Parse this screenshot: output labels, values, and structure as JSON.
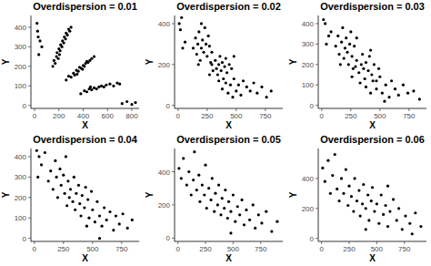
{
  "chart_data": [
    {
      "type": "scatter",
      "title": "Overdispersion = 0.01",
      "x_label": "X",
      "y_label": "Y",
      "color": "#000000",
      "marker": "circle",
      "xlim": [
        -30,
        860
      ],
      "ylim": [
        -15,
        460
      ],
      "xticks": [
        0,
        200,
        400,
        600,
        800
      ],
      "yticks": [
        0,
        100,
        200,
        300,
        400
      ],
      "x": [
        20,
        25,
        30,
        45,
        60,
        35,
        150,
        160,
        170,
        180,
        185,
        195,
        200,
        210,
        215,
        225,
        230,
        240,
        245,
        255,
        260,
        270,
        280,
        290,
        300,
        205,
        260,
        280,
        300,
        320,
        330,
        345,
        360,
        370,
        385,
        400,
        410,
        420,
        440,
        455,
        470,
        490,
        350,
        395,
        430,
        380,
        410,
        430,
        450,
        470,
        490,
        510,
        530,
        550,
        570,
        590,
        620,
        650,
        680,
        700,
        460,
        720,
        760,
        800,
        830
      ],
      "values": [
        420,
        380,
        350,
        330,
        300,
        260,
        200,
        230,
        215,
        250,
        270,
        240,
        290,
        280,
        310,
        300,
        330,
        320,
        350,
        340,
        370,
        360,
        390,
        380,
        400,
        260,
        130,
        150,
        145,
        165,
        155,
        180,
        175,
        195,
        190,
        205,
        200,
        215,
        220,
        230,
        240,
        250,
        160,
        185,
        225,
        60,
        75,
        70,
        85,
        80,
        90,
        85,
        95,
        100,
        95,
        105,
        110,
        100,
        115,
        110,
        95,
        10,
        20,
        5,
        15
      ]
    },
    {
      "type": "scatter",
      "title": "Overdispersion = 0.02",
      "x_label": "X",
      "y_label": "Y",
      "color": "#000000",
      "marker": "circle",
      "xlim": [
        -30,
        900
      ],
      "ylim": [
        -15,
        440
      ],
      "xticks": [
        0,
        250,
        500,
        750
      ],
      "yticks": [
        0,
        200,
        400
      ],
      "x": [
        10,
        30,
        20,
        40,
        60,
        130,
        150,
        160,
        170,
        180,
        190,
        200,
        210,
        220,
        230,
        240,
        250,
        260,
        270,
        280,
        200,
        175,
        290,
        270,
        290,
        300,
        320,
        330,
        340,
        350,
        360,
        370,
        380,
        390,
        400,
        410,
        420,
        440,
        460,
        480,
        350,
        380,
        410,
        430,
        450,
        480,
        500,
        520,
        540,
        560,
        590,
        620,
        650,
        680,
        720,
        760,
        800,
        470
      ],
      "values": [
        400,
        430,
        370,
        280,
        310,
        280,
        330,
        250,
        300,
        360,
        220,
        280,
        320,
        260,
        380,
        300,
        240,
        340,
        290,
        210,
        400,
        200,
        260,
        150,
        200,
        170,
        220,
        180,
        150,
        200,
        240,
        170,
        210,
        130,
        190,
        230,
        160,
        200,
        180,
        240,
        120,
        80,
        110,
        60,
        100,
        130,
        70,
        100,
        50,
        120,
        90,
        70,
        110,
        60,
        90,
        40,
        70,
        40
      ]
    },
    {
      "type": "scatter",
      "title": "Overdispersion = 0.03",
      "x_label": "X",
      "y_label": "Y",
      "color": "#000000",
      "marker": "circle",
      "xlim": [
        -30,
        900
      ],
      "ylim": [
        -15,
        440
      ],
      "xticks": [
        0,
        250,
        500,
        750
      ],
      "yticks": [
        0,
        100,
        200,
        300,
        400
      ],
      "x": [
        15,
        30,
        60,
        40,
        80,
        120,
        140,
        150,
        170,
        180,
        190,
        200,
        210,
        220,
        230,
        240,
        250,
        260,
        280,
        300,
        160,
        270,
        260,
        290,
        300,
        320,
        340,
        350,
        360,
        370,
        380,
        400,
        410,
        430,
        450,
        470,
        490,
        330,
        420,
        380,
        420,
        440,
        470,
        500,
        520,
        550,
        580,
        600,
        630,
        660,
        700,
        740,
        790,
        840,
        540
      ],
      "values": [
        420,
        400,
        340,
        300,
        360,
        290,
        340,
        250,
        310,
        380,
        230,
        280,
        330,
        260,
        200,
        300,
        360,
        240,
        290,
        330,
        200,
        180,
        140,
        190,
        220,
        160,
        200,
        250,
        180,
        130,
        210,
        170,
        240,
        150,
        200,
        120,
        180,
        110,
        270,
        90,
        60,
        120,
        80,
        140,
        60,
        100,
        40,
        120,
        80,
        50,
        100,
        60,
        70,
        30,
        20
      ]
    },
    {
      "type": "scatter",
      "title": "Overdispersion = 0.04",
      "x_label": "X",
      "y_label": "Y",
      "color": "#000000",
      "marker": "circle",
      "xlim": [
        -30,
        900
      ],
      "ylim": [
        -15,
        440
      ],
      "xticks": [
        0,
        250,
        500,
        750
      ],
      "yticks": [
        0,
        100,
        200,
        300,
        400
      ],
      "x": [
        20,
        40,
        60,
        30,
        90,
        120,
        140,
        160,
        180,
        190,
        200,
        220,
        230,
        250,
        260,
        270,
        280,
        290,
        300,
        310,
        330,
        340,
        350,
        360,
        380,
        390,
        400,
        410,
        430,
        440,
        460,
        470,
        490,
        500,
        520,
        540,
        560,
        580,
        600,
        620,
        650,
        680,
        700,
        730,
        760,
        800,
        840,
        560,
        450
      ],
      "values": [
        430,
        400,
        360,
        300,
        420,
        280,
        330,
        240,
        380,
        300,
        200,
        340,
        260,
        310,
        220,
        400,
        160,
        280,
        200,
        240,
        180,
        300,
        140,
        220,
        260,
        170,
        110,
        210,
        150,
        250,
        190,
        100,
        230,
        140,
        80,
        180,
        110,
        60,
        150,
        90,
        130,
        40,
        110,
        70,
        120,
        50,
        90,
        0,
        60
      ]
    },
    {
      "type": "scatter",
      "title": "Overdispersion = 0.05",
      "x_label": "X",
      "y_label": "Y",
      "color": "#000000",
      "marker": "circle",
      "xlim": [
        -30,
        950
      ],
      "ylim": [
        -20,
        540
      ],
      "xticks": [
        0,
        250,
        500,
        750
      ],
      "yticks": [
        0,
        200,
        400
      ],
      "x": [
        10,
        30,
        50,
        80,
        100,
        120,
        140,
        150,
        170,
        190,
        200,
        220,
        240,
        250,
        260,
        280,
        300,
        310,
        330,
        340,
        360,
        370,
        390,
        400,
        420,
        430,
        450,
        460,
        480,
        500,
        520,
        540,
        560,
        580,
        600,
        620,
        650,
        680,
        700,
        730,
        760,
        800,
        850,
        900,
        480
      ],
      "values": [
        420,
        360,
        480,
        320,
        400,
        260,
        350,
        520,
        290,
        380,
        220,
        320,
        260,
        440,
        180,
        300,
        230,
        360,
        160,
        270,
        200,
        320,
        140,
        240,
        180,
        290,
        120,
        220,
        160,
        260,
        100,
        190,
        140,
        230,
        80,
        170,
        110,
        200,
        60,
        140,
        90,
        160,
        40,
        100,
        30
      ]
    },
    {
      "type": "scatter",
      "title": "Overdispersion = 0.06",
      "x_label": "X",
      "y_label": "Y",
      "color": "#000000",
      "marker": "circle",
      "xlim": [
        -30,
        950
      ],
      "ylim": [
        -20,
        600
      ],
      "xticks": [
        0,
        250,
        500,
        750
      ],
      "yticks": [
        0,
        200,
        400
      ],
      "x": [
        10,
        30,
        60,
        80,
        100,
        120,
        140,
        160,
        180,
        200,
        220,
        240,
        250,
        270,
        290,
        300,
        320,
        340,
        350,
        370,
        380,
        400,
        420,
        430,
        450,
        460,
        480,
        500,
        520,
        540,
        560,
        580,
        600,
        620,
        650,
        680,
        700,
        730,
        760,
        800,
        850,
        900,
        820,
        600,
        400
      ],
      "values": [
        470,
        380,
        520,
        300,
        420,
        560,
        330,
        250,
        400,
        300,
        460,
        220,
        350,
        280,
        180,
        400,
        250,
        320,
        150,
        230,
        360,
        200,
        290,
        120,
        250,
        340,
        180,
        230,
        100,
        290,
        160,
        220,
        80,
        180,
        260,
        120,
        200,
        60,
        150,
        100,
        170,
        80,
        30,
        350,
        60
      ]
    }
  ]
}
